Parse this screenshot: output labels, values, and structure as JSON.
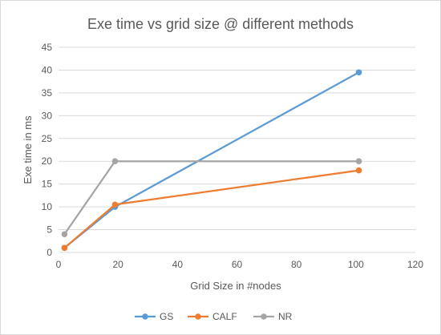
{
  "chart_data": {
    "type": "line",
    "title": "Exe time vs grid size @ different methods",
    "xlabel": "Grid Size in #nodes",
    "ylabel": "Exe time in ms",
    "xlim": [
      0,
      120
    ],
    "ylim": [
      0,
      45
    ],
    "x_ticks": [
      0,
      20,
      40,
      60,
      80,
      100,
      120
    ],
    "y_ticks": [
      0,
      5,
      10,
      15,
      20,
      25,
      30,
      35,
      40,
      45
    ],
    "grid": "horizontal",
    "legend_position": "bottom",
    "series": [
      {
        "name": "GS",
        "color": "#5b9bd5",
        "x": [
          2,
          19,
          101
        ],
        "values": [
          1,
          10,
          39.5
        ]
      },
      {
        "name": "CALF",
        "color": "#ed7d31",
        "x": [
          2,
          19,
          101
        ],
        "values": [
          1,
          10.5,
          18
        ]
      },
      {
        "name": "NR",
        "color": "#a5a5a5",
        "x": [
          2,
          19,
          101
        ],
        "values": [
          4,
          20,
          20
        ]
      }
    ]
  }
}
